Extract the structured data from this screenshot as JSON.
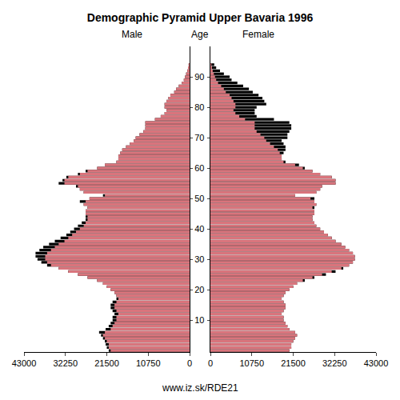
{
  "chart_data": {
    "type": "bar",
    "orientation": "horizontal",
    "title": "Demographic Pyramid Upper Bavaria 1996",
    "ylabel": "Age",
    "annotations": [
      "www.iz.sk/RDE21"
    ],
    "categories": [
      0,
      1,
      2,
      3,
      4,
      5,
      6,
      7,
      8,
      9,
      10,
      11,
      12,
      13,
      14,
      15,
      16,
      17,
      18,
      19,
      20,
      21,
      22,
      23,
      24,
      25,
      26,
      27,
      28,
      29,
      30,
      31,
      32,
      33,
      34,
      35,
      36,
      37,
      38,
      39,
      40,
      41,
      42,
      43,
      44,
      45,
      46,
      47,
      48,
      49,
      50,
      51,
      52,
      53,
      54,
      55,
      56,
      57,
      58,
      59,
      60,
      61,
      62,
      63,
      64,
      65,
      66,
      67,
      68,
      69,
      70,
      71,
      72,
      73,
      74,
      75,
      76,
      77,
      78,
      79,
      80,
      81,
      82,
      83,
      84,
      85,
      86,
      87,
      88,
      89,
      90,
      91,
      92,
      93,
      94
    ],
    "series": [
      {
        "name": "Male",
        "color": "#d9747c",
        "values": [
          21000,
          21500,
          21800,
          22000,
          22500,
          23000,
          23500,
          21800,
          21000,
          20500,
          20000,
          20000,
          19500,
          20000,
          20500,
          20500,
          20000,
          19000,
          19000,
          19500,
          20500,
          21500,
          22500,
          24000,
          26500,
          29000,
          31500,
          34000,
          37000,
          38500,
          39500,
          40000,
          40000,
          39000,
          38000,
          36500,
          35000,
          33500,
          32000,
          31000,
          30000,
          29000,
          28000,
          27000,
          27000,
          27000,
          27000,
          26500,
          27500,
          28500,
          26000,
          22500,
          27500,
          28500,
          29500,
          34000,
          33000,
          32000,
          29000,
          27000,
          24000,
          22000,
          19000,
          18500,
          18500,
          18000,
          17500,
          16500,
          15500,
          14500,
          14000,
          13000,
          12000,
          11500,
          11500,
          11500,
          9000,
          7500,
          6500,
          6000,
          6500,
          6500,
          6000,
          5500,
          5000,
          4000,
          3500,
          2800,
          2000,
          1500,
          1200,
          900,
          600,
          400,
          250
        ]
      },
      {
        "name": "Female",
        "color": "#d9747c",
        "values": [
          20500,
          21000,
          21000,
          21500,
          22000,
          22500,
          22000,
          20500,
          20000,
          19500,
          19000,
          19000,
          18500,
          19000,
          19500,
          19500,
          19000,
          18500,
          19000,
          19500,
          20500,
          21500,
          22500,
          24500,
          27000,
          30000,
          32500,
          34500,
          36000,
          37000,
          37500,
          37500,
          37000,
          36000,
          35000,
          34000,
          32500,
          31500,
          30500,
          29500,
          28500,
          27500,
          27000,
          26500,
          26500,
          27000,
          27000,
          27000,
          27500,
          27000,
          27000,
          22000,
          27500,
          28500,
          29000,
          32500,
          32500,
          31500,
          28500,
          26500,
          24500,
          23000,
          19500,
          18500,
          18500,
          19000,
          19500,
          19500,
          19000,
          18500,
          20000,
          20000,
          20500,
          21000,
          21000,
          20500,
          16500,
          12000,
          11500,
          11500,
          12000,
          14500,
          14000,
          13500,
          12500,
          11000,
          10000,
          8500,
          7000,
          5500,
          5000,
          3500,
          2500,
          1500,
          1000
        ]
      }
    ],
    "xlim": [
      0,
      43000
    ],
    "xticks": [
      0,
      10750,
      21500,
      32250,
      43000
    ],
    "ylim": [
      -0.5,
      100
    ],
    "yticks": [
      10,
      20,
      30,
      40,
      50,
      60,
      70,
      80,
      90
    ],
    "grid": false
  }
}
